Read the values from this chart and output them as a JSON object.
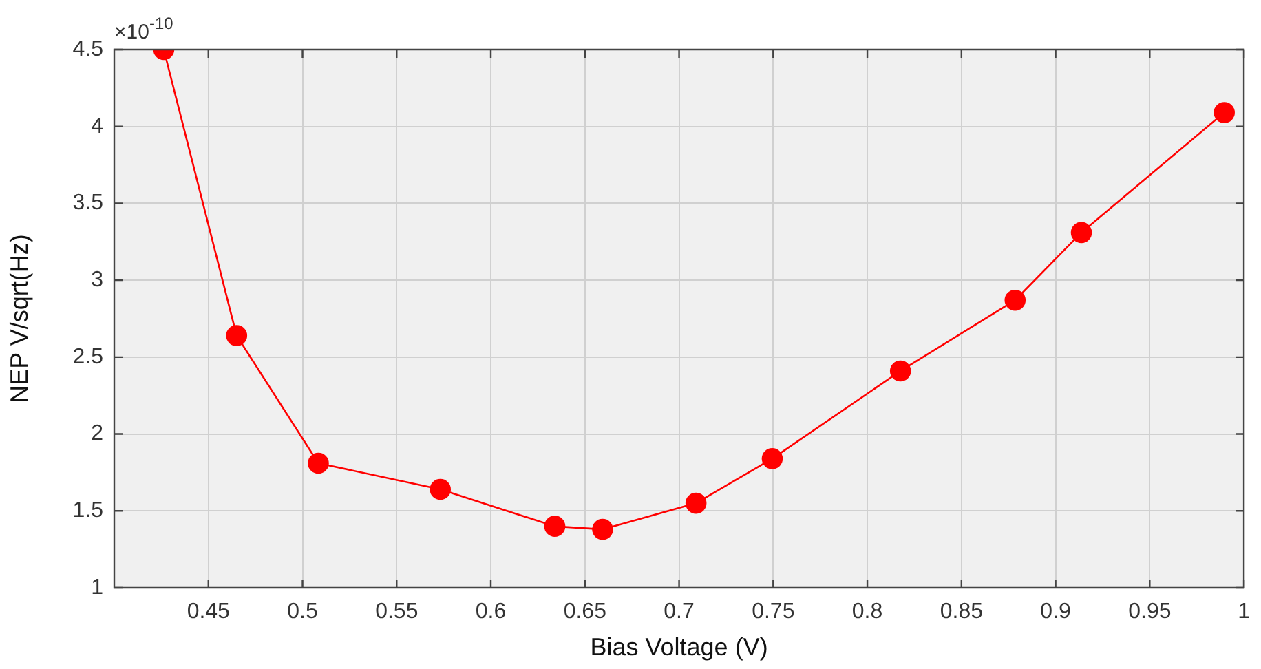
{
  "chart_data": {
    "type": "line",
    "xlabel": "Bias Voltage (V)",
    "ylabel": "NEP V/sqrt(Hz)",
    "annotations": [
      "×10$^{-10}$"
    ],
    "x": [
      0.4263,
      0.465,
      0.5084,
      0.5732,
      0.634,
      0.6594,
      0.709,
      0.7495,
      0.8176,
      0.8785,
      0.9137,
      0.9896
    ],
    "series": [
      {
        "color": "#ff0000",
        "values": [
          4.5,
          2.64,
          1.81,
          1.64,
          1.4,
          1.38,
          1.55,
          1.84,
          2.41,
          2.87,
          3.31,
          4.09
        ]
      }
    ],
    "xlim": [
      0.4,
      1
    ],
    "ylim": [
      1,
      4.5
    ],
    "xticks": [
      0.45,
      0.5,
      0.55,
      0.6,
      0.65,
      0.7,
      0.75,
      0.8,
      0.85,
      0.9,
      0.95,
      1
    ],
    "yticks": [
      1,
      1.5,
      2,
      2.5,
      3,
      3.5,
      4,
      4.5
    ],
    "grid": true,
    "marker": "circle",
    "line_style": "solid",
    "legend": false
  }
}
